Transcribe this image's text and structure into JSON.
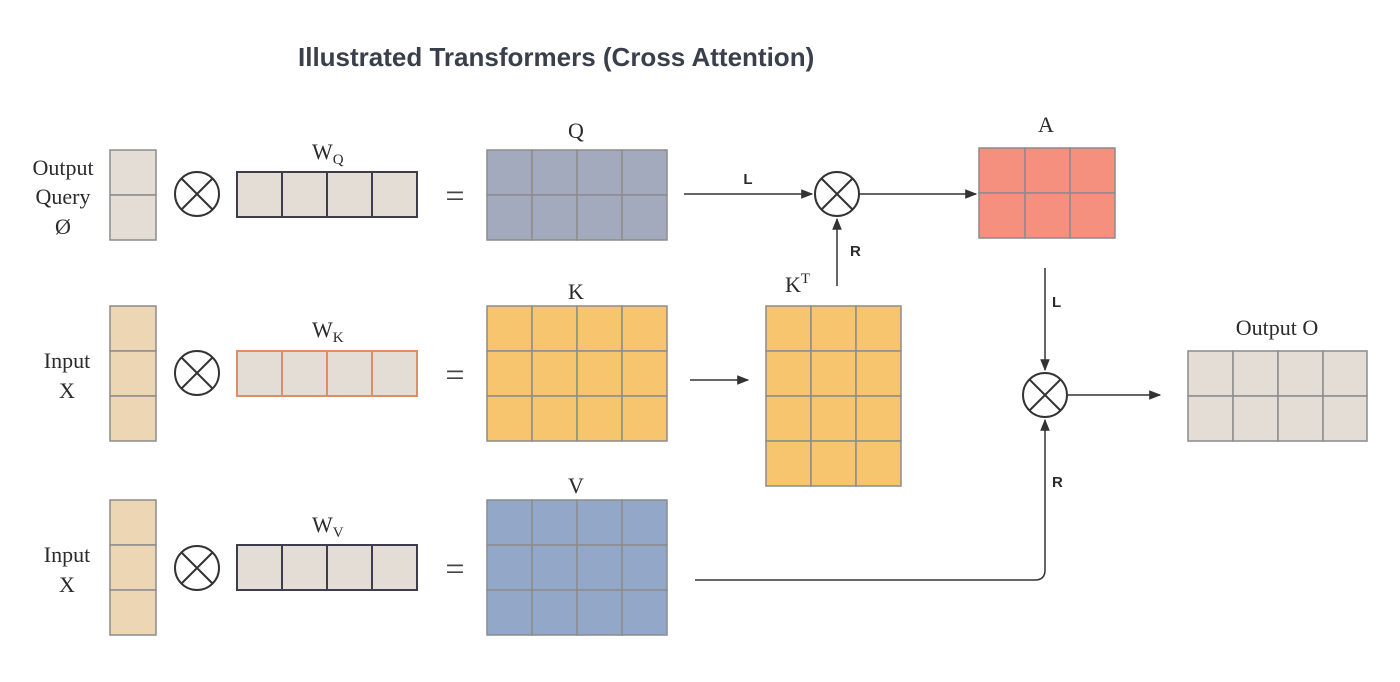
{
  "title": "Illustrated Transformers (Cross Attention)",
  "colors": {
    "token": "#e3ddd6",
    "token_border": "#8c8c8c",
    "input_token": "#ecd6b4",
    "weight": "#e3ddd6",
    "weight_border_dark": "#3d3d4d",
    "weight_border_k": "#e08c66",
    "q_fill": "#a3aabd",
    "k_fill": "#f7c56d",
    "v_fill": "#93a7c8",
    "a_fill": "#f58f7e",
    "out_fill": "#e3ddd6",
    "grid_border": "#8c8c8c",
    "line": "#333333"
  },
  "rows": {
    "query": {
      "label_lines": [
        "Output",
        "Query",
        "Ø"
      ],
      "weight_main": "W",
      "weight_sub": "Q",
      "result": "Q"
    },
    "key": {
      "label_lines": [
        "Input",
        "X"
      ],
      "weight_main": "W",
      "weight_sub": "K",
      "result": "K"
    },
    "value": {
      "label_lines": [
        "Input",
        "X"
      ],
      "weight_main": "W",
      "weight_sub": "V",
      "result": "V"
    }
  },
  "transpose": {
    "main": "K",
    "sup": "T"
  },
  "attention": {
    "label": "A"
  },
  "output": {
    "label": "Output O"
  },
  "edges": {
    "left": "L",
    "right": "R"
  },
  "symbols": {
    "multiply": "⊗",
    "equals": "="
  }
}
